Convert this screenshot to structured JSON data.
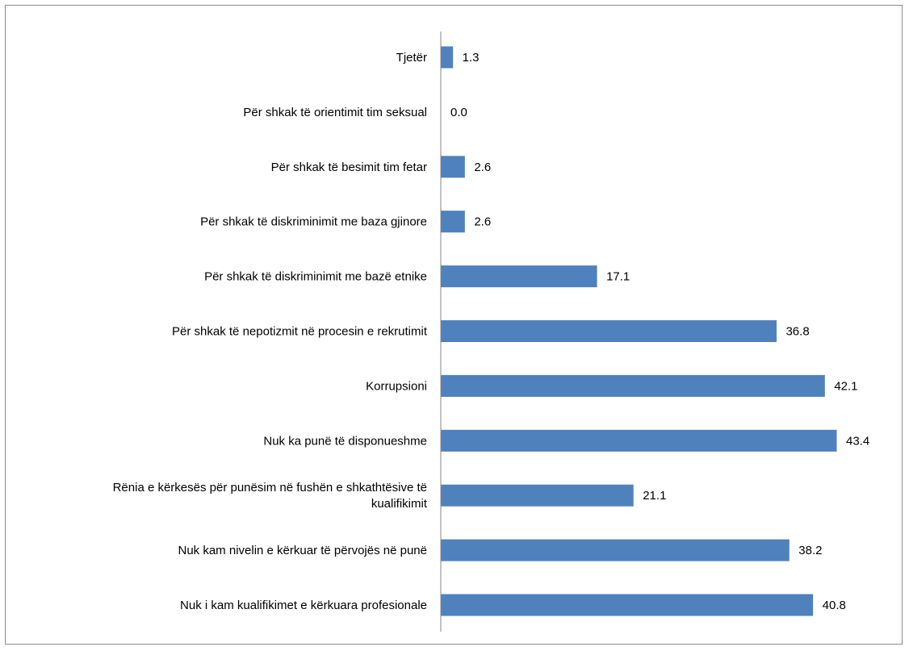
{
  "chart_data": {
    "type": "bar",
    "orientation": "horizontal",
    "categories": [
      "Tjetër",
      "Për shkak të orientimit tim seksual",
      "Për shkak të besimit tim fetar",
      "Për shkak të diskriminimit me baza gjinore",
      "Për shkak të diskriminimit me bazë etnike",
      "Për shkak të nepotizmit në procesin e rekrutimit",
      "Korrupsioni",
      "Nuk ka punë të disponueshme",
      [
        "Rënia e kërkesës për punësim në fushën e shkathtësive të",
        "kualifikimit"
      ],
      "Nuk kam nivelin e kërkuar të përvojës në punë",
      "Nuk i kam kualifikimet e kërkuara profesionale"
    ],
    "values": [
      1.3,
      0.0,
      2.6,
      2.6,
      17.1,
      36.8,
      42.1,
      43.4,
      21.1,
      38.2,
      40.8
    ],
    "value_labels": [
      "1.3",
      "0.0",
      "2.6",
      "2.6",
      "17.1",
      "36.8",
      "42.1",
      "43.4",
      "21.1",
      "38.2",
      "40.8"
    ],
    "xlim": [
      0,
      43.4
    ],
    "grid": false,
    "legend": "none",
    "bar_color": "#4f81bd"
  }
}
